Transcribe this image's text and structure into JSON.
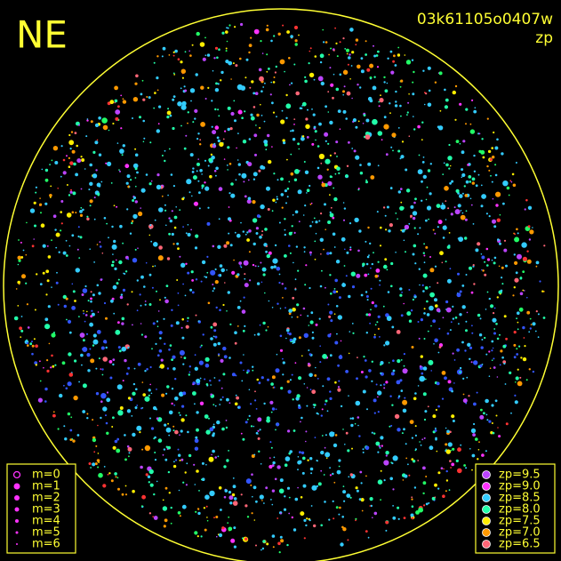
{
  "header": {
    "direction": "NE",
    "image_id": "03k61105o0407w",
    "mode": "zp"
  },
  "magnitude_legend": {
    "color": "#ff33ff",
    "items": [
      "m=0",
      "m=1",
      "m=2",
      "m=3",
      "m=4",
      "m=5",
      "m=6"
    ]
  },
  "zp_legend": {
    "items": [
      {
        "label": "zp=9.5",
        "color": "#bb44ff"
      },
      {
        "label": "zp=9.0",
        "color": "#ff33ff"
      },
      {
        "label": "zp=8.5",
        "color": "#33ccff"
      },
      {
        "label": "zp=8.0",
        "color": "#22ffaa"
      },
      {
        "label": "zp=7.5",
        "color": "#ffee00"
      },
      {
        "label": "zp=7.0",
        "color": "#ff9900"
      },
      {
        "label": "zp=6.5",
        "color": "#ff6677"
      }
    ]
  }
}
